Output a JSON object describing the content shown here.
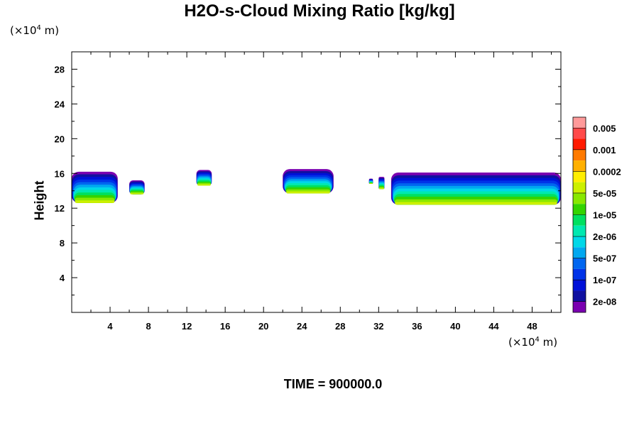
{
  "title": "H2O-s-Cloud Mixing Ratio [kg/kg]",
  "time_label": "TIME = 900000.0",
  "y_unit": {
    "prefix": "(×10",
    "exp": "4",
    "suffix": " m)"
  },
  "x_unit": {
    "prefix": "(×10",
    "exp": "4",
    "suffix": " m)"
  },
  "chart_data": {
    "type": "heatmap",
    "title": "H2O-s-Cloud Mixing Ratio [kg/kg]",
    "ylabel": "Height",
    "xlabel": "",
    "xlim": [
      0,
      51
    ],
    "ylim": [
      0,
      30
    ],
    "x_ticks": [
      4,
      8,
      12,
      16,
      20,
      24,
      28,
      32,
      36,
      40,
      44,
      48
    ],
    "y_ticks": [
      4,
      8,
      12,
      16,
      20,
      24,
      28
    ],
    "colorbar": {
      "labels": [
        "0.005",
        "0.001",
        "0.0002",
        "5e-05",
        "1e-05",
        "2e-06",
        "5e-07",
        "1e-07",
        "2e-08"
      ],
      "colors": [
        "#ff9a9a",
        "#ff4a4a",
        "#ff1a00",
        "#ff7a00",
        "#ffb000",
        "#ffee00",
        "#ccf000",
        "#88e800",
        "#33d400",
        "#00e060",
        "#00e8b0",
        "#00d8e8",
        "#00a8f0",
        "#0066f0",
        "#0033e8",
        "#0010d8",
        "#1010a0",
        "#7a00b0"
      ]
    },
    "cloud_regions": [
      {
        "x": [
          0,
          4.8
        ],
        "base": 12.6,
        "top": 16.2
      },
      {
        "x": [
          6.0,
          7.6
        ],
        "base": 13.6,
        "top": 15.2
      },
      {
        "x": [
          13.0,
          14.6
        ],
        "base": 14.6,
        "top": 16.4
      },
      {
        "x": [
          22.0,
          27.3
        ],
        "base": 13.7,
        "top": 16.5
      },
      {
        "x": [
          31.0,
          31.4
        ],
        "base": 14.8,
        "top": 15.4
      },
      {
        "x": [
          32.0,
          32.6
        ],
        "base": 14.2,
        "top": 15.6
      },
      {
        "x": [
          33.3,
          51.0
        ],
        "base": 12.4,
        "top": 16.1
      }
    ]
  }
}
